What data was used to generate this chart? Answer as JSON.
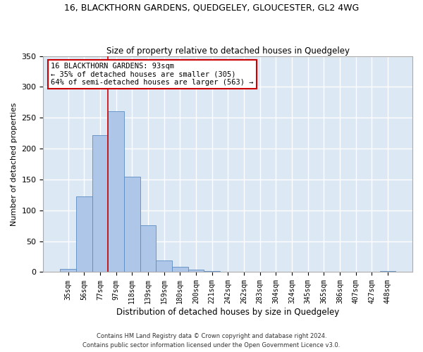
{
  "title": "16, BLACKTHORN GARDENS, QUEDGELEY, GLOUCESTER, GL2 4WG",
  "subtitle": "Size of property relative to detached houses in Quedgeley",
  "xlabel": "Distribution of detached houses by size in Quedgeley",
  "ylabel": "Number of detached properties",
  "categories": [
    "35sqm",
    "56sqm",
    "77sqm",
    "97sqm",
    "118sqm",
    "139sqm",
    "159sqm",
    "180sqm",
    "200sqm",
    "221sqm",
    "242sqm",
    "262sqm",
    "283sqm",
    "304sqm",
    "324sqm",
    "345sqm",
    "365sqm",
    "386sqm",
    "407sqm",
    "427sqm",
    "448sqm"
  ],
  "values": [
    5,
    123,
    222,
    261,
    154,
    76,
    19,
    8,
    4,
    2,
    0,
    0,
    1,
    0,
    0,
    0,
    0,
    0,
    0,
    0,
    2
  ],
  "bar_color": "#aec6e8",
  "bar_edge_color": "#5a8cc2",
  "background_color": "#dde8f5",
  "grid_color": "#ffffff",
  "fig_background": "#ffffff",
  "vline_x": 2.5,
  "vline_color": "#cc0000",
  "ylim": [
    0,
    350
  ],
  "yticks": [
    0,
    50,
    100,
    150,
    200,
    250,
    300,
    350
  ],
  "annotation_text": "16 BLACKTHORN GARDENS: 93sqm\n← 35% of detached houses are smaller (305)\n64% of semi-detached houses are larger (563) →",
  "annotation_box_color": "#ffffff",
  "annotation_box_edge": "#cc0000",
  "footer1": "Contains HM Land Registry data © Crown copyright and database right 2024.",
  "footer2": "Contains public sector information licensed under the Open Government Licence v3.0."
}
